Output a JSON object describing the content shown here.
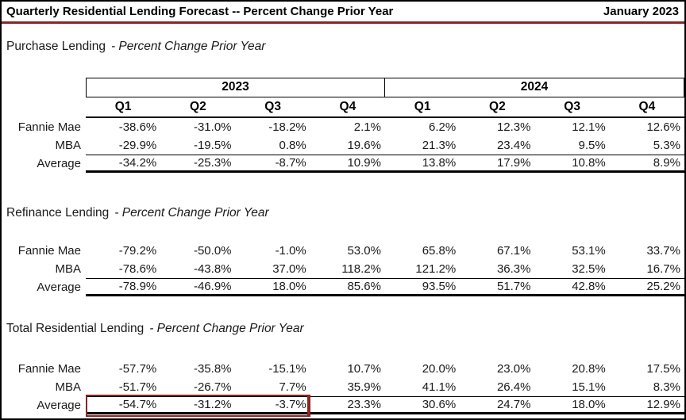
{
  "header": {
    "title": "Quarterly Residential Lending Forecast -- Percent Change Prior Year",
    "date": "January 2023"
  },
  "colors": {
    "accent_maroon": "#8B2424",
    "text": "#1a1a1a",
    "background": "#ffffff"
  },
  "table": {
    "year_groups": [
      "2023",
      "2024"
    ],
    "quarter_headers": [
      "Q1",
      "Q2",
      "Q3",
      "Q4",
      "Q1",
      "Q2",
      "Q3",
      "Q4"
    ]
  },
  "sections": [
    {
      "name": "Purchase Lending",
      "subtitle": "- Percent Change Prior Year",
      "rows": [
        {
          "label": "Fannie Mae",
          "values": [
            "-38.6%",
            "-31.0%",
            "-18.2%",
            "2.1%",
            "6.2%",
            "12.3%",
            "12.1%",
            "12.6%"
          ]
        },
        {
          "label": "MBA",
          "values": [
            "-29.9%",
            "-19.5%",
            "0.8%",
            "19.6%",
            "21.3%",
            "23.4%",
            "9.5%",
            "5.3%"
          ]
        },
        {
          "label": "Average",
          "values": [
            "-34.2%",
            "-25.3%",
            "-8.7%",
            "10.9%",
            "13.8%",
            "17.9%",
            "10.8%",
            "8.9%"
          ]
        }
      ]
    },
    {
      "name": "Refinance Lending",
      "subtitle": "- Percent Change Prior Year",
      "rows": [
        {
          "label": "Fannie Mae",
          "values": [
            "-79.2%",
            "-50.0%",
            "-1.0%",
            "53.0%",
            "65.8%",
            "67.1%",
            "53.1%",
            "33.7%"
          ]
        },
        {
          "label": "MBA",
          "values": [
            "-78.6%",
            "-43.8%",
            "37.0%",
            "118.2%",
            "121.2%",
            "36.3%",
            "32.5%",
            "16.7%"
          ]
        },
        {
          "label": "Average",
          "values": [
            "-78.9%",
            "-46.9%",
            "18.0%",
            "85.6%",
            "93.5%",
            "51.7%",
            "42.8%",
            "25.2%"
          ]
        }
      ]
    },
    {
      "name": "Total Residential Lending",
      "subtitle": "- Percent Change Prior Year",
      "rows": [
        {
          "label": "Fannie Mae",
          "values": [
            "-57.7%",
            "-35.8%",
            "-15.1%",
            "10.7%",
            "20.0%",
            "23.0%",
            "20.8%",
            "17.5%"
          ]
        },
        {
          "label": "MBA",
          "values": [
            "-51.7%",
            "-26.7%",
            "7.7%",
            "35.9%",
            "41.1%",
            "26.4%",
            "15.1%",
            "8.3%"
          ]
        },
        {
          "label": "Average",
          "values": [
            "-54.7%",
            "-31.2%",
            "-3.7%",
            "23.3%",
            "30.6%",
            "24.7%",
            "18.0%",
            "12.9%"
          ]
        }
      ]
    }
  ]
}
